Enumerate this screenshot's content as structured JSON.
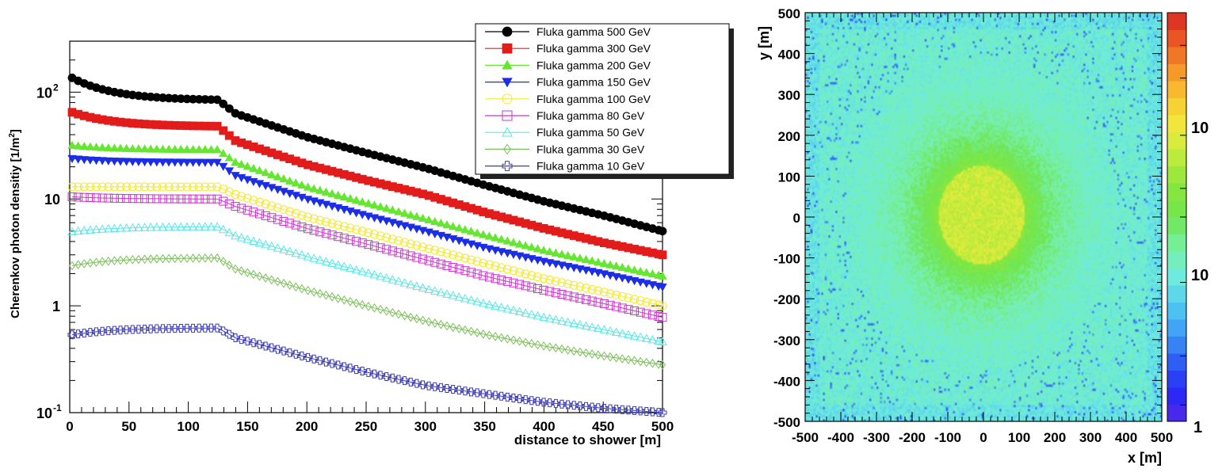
{
  "chart_data": [
    {
      "type": "line",
      "yscale": "log",
      "xlabel": "distance to shower [m]",
      "ylabel": "Cherenkov photon densitiy [1/m",
      "ylabel_sup": "2",
      "ylabel_end": "]",
      "xlim": [
        0,
        500
      ],
      "ylim": [
        0.1,
        300
      ],
      "xticks": [
        "0",
        "50",
        "100",
        "150",
        "200",
        "250",
        "300",
        "350",
        "400",
        "450",
        "500"
      ],
      "yticks": [
        {
          "base": "10",
          "exp": "-1",
          "value": 0.1
        },
        {
          "base": "1",
          "exp": "",
          "value": 1
        },
        {
          "base": "10",
          "exp": "",
          "value": 10
        },
        {
          "base": "10",
          "exp": "2",
          "value": 100
        }
      ],
      "x": [
        0,
        125,
        140,
        200,
        250,
        300,
        350,
        400,
        450,
        500
      ],
      "series": [
        {
          "name": "Fluka gamma 500 GeV",
          "color": "#000000",
          "marker": "circle-filled",
          "plateau": [
            140,
            85
          ],
          "values": [
            145,
            85,
            63,
            38,
            27,
            19.5,
            13.5,
            9.5,
            7,
            5
          ]
        },
        {
          "name": "Fluka gamma 300 GeV",
          "color": "#e21b1b",
          "marker": "square-filled",
          "plateau": [
            66,
            48
          ],
          "values": [
            66,
            48,
            35,
            21,
            15,
            11,
            7.5,
            5.3,
            3.9,
            3
          ]
        },
        {
          "name": "Fluka gamma 200 GeV",
          "color": "#66e633",
          "marker": "triangle-up-filled",
          "plateau": [
            32,
            29
          ],
          "values": [
            32,
            29,
            22,
            13,
            9.2,
            6.5,
            4.6,
            3.3,
            2.5,
            1.9
          ]
        },
        {
          "name": "Fluka gamma 150 GeV",
          "color": "#1b2ee6",
          "marker": "triangle-down-filled",
          "plateau": [
            24,
            22
          ],
          "values": [
            24,
            22,
            16.5,
            10,
            7,
            5,
            3.5,
            2.6,
            2,
            1.5
          ]
        },
        {
          "name": "Fluka gamma 100 GeV",
          "color": "#f5e82b",
          "marker": "circle-open",
          "plateau": [
            13,
            13
          ],
          "values": [
            13,
            13,
            11,
            6.8,
            4.9,
            3.5,
            2.5,
            1.8,
            1.35,
            1
          ]
        },
        {
          "name": "Fluka gamma 80 GeV",
          "color": "#cc33cc",
          "marker": "square-open",
          "plateau": [
            10.5,
            10
          ],
          "values": [
            10.5,
            10,
            8.5,
            5.3,
            3.8,
            2.7,
            1.9,
            1.4,
            1.05,
            0.78
          ]
        },
        {
          "name": "Fluka gamma 50 GeV",
          "color": "#5fe6e6",
          "marker": "triangle-up-open",
          "plateau": [
            4.9,
            5.5
          ],
          "values": [
            4.9,
            5.5,
            4.5,
            2.9,
            2.05,
            1.45,
            1.05,
            0.78,
            0.6,
            0.46
          ]
        },
        {
          "name": "Fluka gamma 30 GeV",
          "color": "#7cbf5a",
          "marker": "diamond-open",
          "plateau": [
            2.35,
            2.8
          ],
          "values": [
            2.35,
            2.8,
            2.2,
            1.4,
            1.0,
            0.72,
            0.54,
            0.42,
            0.34,
            0.28
          ]
        },
        {
          "name": "Fluka gamma 10 GeV",
          "color": "#3b3bb3",
          "marker": "cross-open",
          "plateau": [
            0.53,
            0.62
          ],
          "values": [
            0.53,
            0.62,
            0.5,
            0.33,
            0.24,
            0.18,
            0.15,
            0.125,
            0.11,
            0.1
          ]
        }
      ],
      "legend_position": "top-right"
    },
    {
      "type": "heatmap",
      "xlabel": "x [m]",
      "ylabel": "y [m]",
      "xlim": [
        -500,
        500
      ],
      "ylim": [
        -500,
        500
      ],
      "xticks": [
        "-500",
        "-400",
        "-300",
        "-200",
        "-100",
        "0",
        "100",
        "200",
        "300",
        "400",
        "500"
      ],
      "yticks": [
        "-500",
        "-400",
        "-300",
        "-200",
        "-100",
        "0",
        "100",
        "200",
        "300",
        "400",
        "500"
      ],
      "colorbar_labels": [
        "1",
        "10",
        "10"
      ],
      "colorbar_range": [
        1,
        300
      ],
      "colorbar_scale": "log",
      "description_values": {
        "core_radius_m": 120,
        "core_density": 45,
        "outer_density": 8
      }
    }
  ]
}
